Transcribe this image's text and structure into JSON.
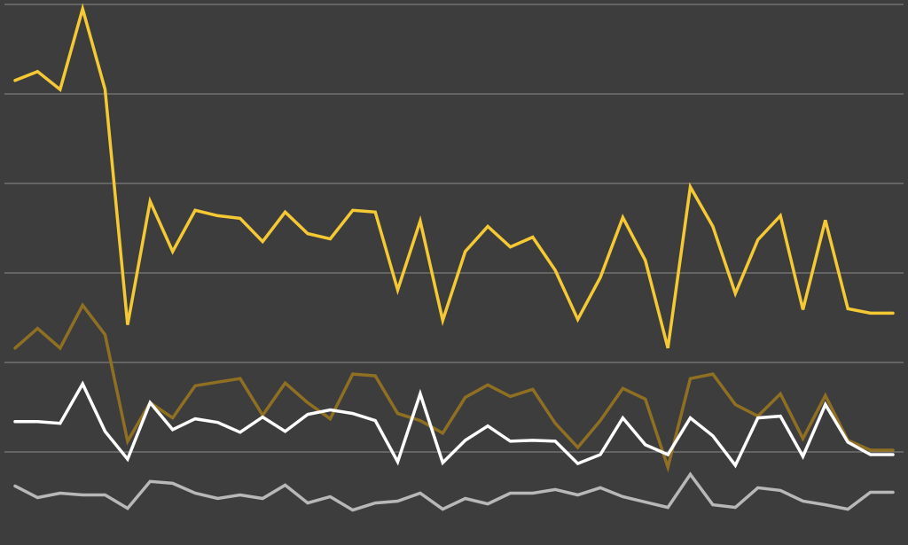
{
  "chart_data": {
    "type": "line",
    "title": "",
    "xlabel": "",
    "ylabel": "",
    "x": [
      1,
      2,
      3,
      4,
      5,
      6,
      7,
      8,
      9,
      10,
      11,
      12,
      13,
      14,
      15,
      16,
      17,
      18,
      19,
      20,
      21,
      22,
      23,
      24,
      25,
      26,
      27,
      28,
      29,
      30,
      31,
      32,
      33,
      34,
      35,
      36,
      37,
      38,
      39,
      40
    ],
    "ylim": [
      0,
      6
    ],
    "grid": true,
    "legend": "none",
    "background_color": "#3d3d3d",
    "gridline_color": "#8a8a8a",
    "series": [
      {
        "color": "#f5c934",
        "values": [
          4.15,
          4.25,
          4.05,
          4.95,
          4.05,
          1.42,
          2.8,
          2.24,
          2.7,
          2.64,
          2.61,
          2.35,
          2.68,
          2.44,
          2.38,
          2.7,
          2.68,
          1.81,
          2.58,
          1.47,
          2.24,
          2.52,
          2.29,
          2.4,
          2.03,
          1.48,
          1.95,
          2.62,
          2.14,
          1.16,
          2.96,
          2.52,
          1.77,
          2.37,
          2.64,
          1.59,
          2.59,
          1.6,
          1.55,
          1.55
        ]
      },
      {
        "color": "#8f6f22",
        "values": [
          1.16,
          1.38,
          1.16,
          1.64,
          1.31,
          0.12,
          0.55,
          0.38,
          0.74,
          0.78,
          0.82,
          0.41,
          0.77,
          0.55,
          0.37,
          0.87,
          0.85,
          0.43,
          0.35,
          0.21,
          0.61,
          0.75,
          0.62,
          0.7,
          0.32,
          0.05,
          0.35,
          0.71,
          0.59,
          -0.17,
          0.82,
          0.87,
          0.53,
          0.4,
          0.65,
          0.15,
          0.63,
          0.13,
          0.02,
          0.02
        ]
      },
      {
        "color": "#ffffff",
        "values": [
          0.34,
          0.34,
          0.32,
          0.76,
          0.23,
          -0.08,
          0.55,
          0.25,
          0.37,
          0.33,
          0.22,
          0.39,
          0.23,
          0.42,
          0.47,
          0.43,
          0.35,
          -0.11,
          0.65,
          -0.12,
          0.13,
          0.29,
          0.12,
          0.13,
          0.12,
          -0.13,
          -0.03,
          0.38,
          0.08,
          -0.03,
          0.38,
          0.18,
          -0.15,
          0.38,
          0.4,
          -0.05,
          0.53,
          0.11,
          -0.03,
          -0.03
        ]
      },
      {
        "color": "#b8b8b8",
        "values": [
          -0.38,
          -0.51,
          -0.46,
          -0.48,
          -0.48,
          -0.63,
          -0.33,
          -0.35,
          -0.46,
          -0.52,
          -0.48,
          -0.52,
          -0.37,
          -0.57,
          -0.5,
          -0.65,
          -0.57,
          -0.55,
          -0.46,
          -0.64,
          -0.52,
          -0.58,
          -0.46,
          -0.46,
          -0.42,
          -0.48,
          -0.4,
          -0.5,
          -0.56,
          -0.62,
          -0.25,
          -0.59,
          -0.62,
          -0.4,
          -0.43,
          -0.55,
          -0.59,
          -0.64,
          -0.45,
          -0.45
        ]
      }
    ]
  }
}
